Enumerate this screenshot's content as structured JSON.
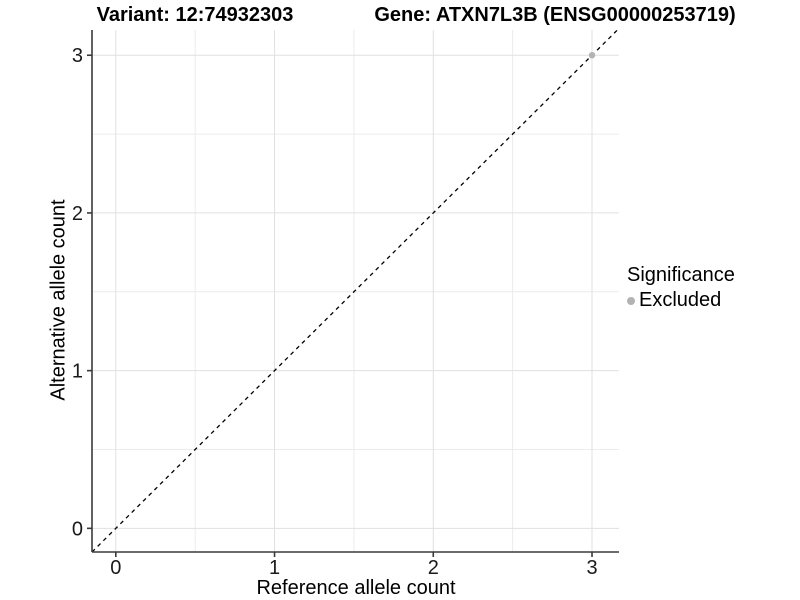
{
  "chart_data": {
    "type": "scatter",
    "title_left": "Variant: 12:74932303",
    "title_right": "Gene: ATXN7L3B (ENSG00000253719)",
    "xlabel": "Reference allele count",
    "ylabel": "Alternative allele count",
    "xlim": [
      -0.15,
      3.17
    ],
    "ylim": [
      -0.15,
      3.16
    ],
    "x_ticks": [
      0,
      1,
      2,
      3
    ],
    "y_ticks": [
      0,
      1,
      2,
      3
    ],
    "x_minor_ticks": [
      0.5,
      1.5,
      2.5
    ],
    "y_minor_ticks": [
      0.5,
      1.5,
      2.5
    ],
    "grid": "major+minor",
    "identity_line": {
      "style": "dashed",
      "equation": "y = x",
      "from": [
        -0.15,
        -0.15
      ],
      "to": [
        3.16,
        3.16
      ],
      "color": "#000000"
    },
    "series": [
      {
        "name": "Excluded",
        "marker": "circle",
        "color": "#b3b3b3",
        "points": [
          {
            "x": 3,
            "y": 3
          }
        ]
      }
    ],
    "legend": {
      "title": "Significance",
      "position": "right",
      "items": [
        {
          "label": "Excluded",
          "color": "#b3b3b3",
          "marker": "circle"
        }
      ]
    }
  },
  "colors": {
    "background": "#ffffff",
    "grid_major": "#e0e0e0",
    "grid_minor": "#ececec",
    "axis_line": "#3a3a3a",
    "tick_text": "#1a1a1a",
    "title_text": "#000000",
    "excluded_gray": "#b3b3b3"
  }
}
